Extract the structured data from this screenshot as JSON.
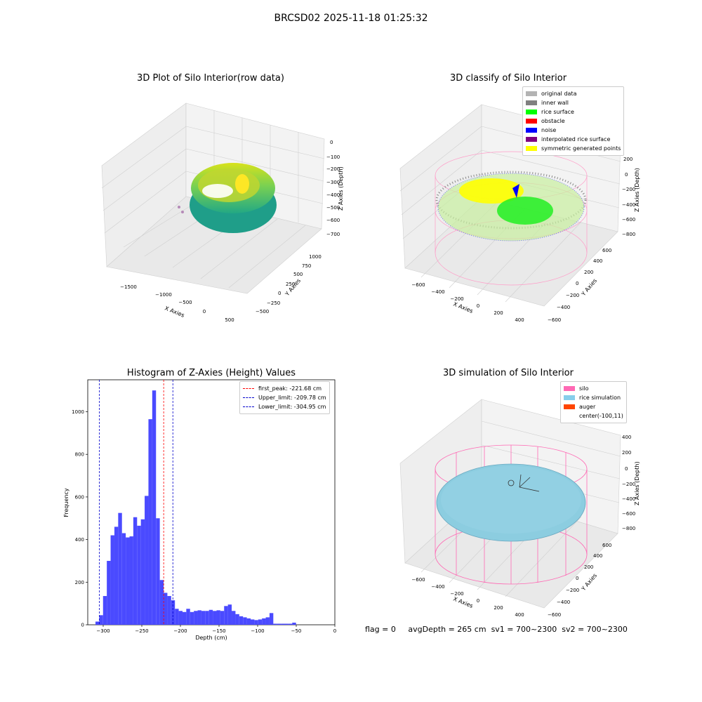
{
  "suptitle": "BRCSD02 2025-11-18 01:25:32",
  "status_line": {
    "flag": "flag = 0",
    "avg_depth": "avgDepth = 265 cm",
    "sv1": "sv1 = 700~2300",
    "sv2": "sv2 = 700~2300"
  },
  "panels": {
    "raw": {
      "title": "3D Plot of Silo Interior(row data)",
      "xlabel": "X Axies",
      "ylabel": "Y Axies",
      "zlabel": "Z Axies (Depth)",
      "x_ticks": [
        "−1500",
        "−1000",
        "−500",
        "0",
        "500"
      ],
      "y_ticks": [
        "−500",
        "−250",
        "0",
        "250",
        "500",
        "750",
        "1000"
      ],
      "z_ticks": [
        "0",
        "−100",
        "−200",
        "−300",
        "−400",
        "−500",
        "−600",
        "−700"
      ]
    },
    "classify": {
      "title": "3D classify of Silo Interior",
      "xlabel": "X Axies",
      "ylabel": "Y Axies",
      "zlabel": "Z Axies (Depth)",
      "x_ticks": [
        "−600",
        "−400",
        "−200",
        "0",
        "200",
        "400"
      ],
      "y_ticks": [
        "−600",
        "−400",
        "−200",
        "0",
        "200",
        "400",
        "600"
      ],
      "z_ticks": [
        "200",
        "0",
        "−200",
        "−400",
        "−600",
        "−800"
      ],
      "legend": [
        {
          "label": "original data",
          "color": "#b3b3b3"
        },
        {
          "label": "inner wall",
          "color": "#808080"
        },
        {
          "label": "rice surface",
          "color": "#00ff00"
        },
        {
          "label": "obstacle",
          "color": "#ff0000"
        },
        {
          "label": "noise",
          "color": "#0000ff"
        },
        {
          "label": "interpolated rice surface",
          "color": "#800080"
        },
        {
          "label": "symmetric generated points",
          "color": "#ffff00"
        }
      ]
    },
    "simulation": {
      "title": "3D simulation of Silo Interior",
      "xlabel": "X Axies",
      "ylabel": "Y Axies",
      "zlabel": "Z Axies (Depth)",
      "x_ticks": [
        "−600",
        "−400",
        "−200",
        "0",
        "200",
        "400"
      ],
      "y_ticks": [
        "−600",
        "−400",
        "−200",
        "0",
        "200",
        "400",
        "600"
      ],
      "z_ticks": [
        "400",
        "200",
        "0",
        "−200",
        "−400",
        "−600",
        "−800"
      ],
      "legend": [
        {
          "label": "silo",
          "color": "#ff69b4"
        },
        {
          "label": "rice simulation",
          "color": "#87ceeb"
        },
        {
          "label": "auger",
          "color": "#ff4500"
        },
        {
          "label": "center(-100,11)",
          "color": ""
        }
      ]
    }
  },
  "chart_data": {
    "type": "bar",
    "title": "Histogram of Z-Axies (Height) Values",
    "xlabel": "Depth (cm)",
    "ylabel": "Frequency",
    "xlim": [
      -320,
      0
    ],
    "ylim": [
      0,
      1150
    ],
    "x_ticks": [
      -300,
      -250,
      -200,
      -150,
      -100,
      -50,
      0
    ],
    "y_ticks": [
      0,
      200,
      400,
      600,
      800,
      1000
    ],
    "bar_color": "#4a4aff",
    "bins": [
      {
        "x0": -310.0,
        "x1": -305.1,
        "count": 15
      },
      {
        "x0": -305.1,
        "x1": -300.2,
        "count": 45
      },
      {
        "x0": -300.2,
        "x1": -295.3,
        "count": 135
      },
      {
        "x0": -295.3,
        "x1": -290.4,
        "count": 300
      },
      {
        "x0": -290.4,
        "x1": -285.5,
        "count": 420
      },
      {
        "x0": -285.5,
        "x1": -280.6,
        "count": 460
      },
      {
        "x0": -280.6,
        "x1": -275.7,
        "count": 525
      },
      {
        "x0": -275.7,
        "x1": -270.8,
        "count": 430
      },
      {
        "x0": -270.8,
        "x1": -265.9,
        "count": 410
      },
      {
        "x0": -265.9,
        "x1": -261.0,
        "count": 415
      },
      {
        "x0": -261.0,
        "x1": -256.1,
        "count": 505
      },
      {
        "x0": -256.1,
        "x1": -251.2,
        "count": 465
      },
      {
        "x0": -251.2,
        "x1": -246.3,
        "count": 495
      },
      {
        "x0": -246.3,
        "x1": -241.4,
        "count": 605
      },
      {
        "x0": -241.4,
        "x1": -236.5,
        "count": 965
      },
      {
        "x0": -236.5,
        "x1": -231.6,
        "count": 1100
      },
      {
        "x0": -231.6,
        "x1": -226.7,
        "count": 500
      },
      {
        "x0": -226.7,
        "x1": -221.8,
        "count": 210
      },
      {
        "x0": -221.8,
        "x1": -216.9,
        "count": 150
      },
      {
        "x0": -216.9,
        "x1": -212.0,
        "count": 135
      },
      {
        "x0": -212.0,
        "x1": -207.1,
        "count": 115
      },
      {
        "x0": -207.1,
        "x1": -202.2,
        "count": 75
      },
      {
        "x0": -202.2,
        "x1": -197.3,
        "count": 65
      },
      {
        "x0": -197.3,
        "x1": -192.4,
        "count": 60
      },
      {
        "x0": -192.4,
        "x1": -187.5,
        "count": 75
      },
      {
        "x0": -187.5,
        "x1": -182.6,
        "count": 60
      },
      {
        "x0": -182.6,
        "x1": -177.7,
        "count": 65
      },
      {
        "x0": -177.7,
        "x1": -172.8,
        "count": 68
      },
      {
        "x0": -172.8,
        "x1": -167.9,
        "count": 65
      },
      {
        "x0": -167.9,
        "x1": -163.0,
        "count": 65
      },
      {
        "x0": -163.0,
        "x1": -158.1,
        "count": 70
      },
      {
        "x0": -158.1,
        "x1": -153.2,
        "count": 65
      },
      {
        "x0": -153.2,
        "x1": -148.3,
        "count": 68
      },
      {
        "x0": -148.3,
        "x1": -143.4,
        "count": 65
      },
      {
        "x0": -143.4,
        "x1": -138.5,
        "count": 88
      },
      {
        "x0": -138.5,
        "x1": -133.6,
        "count": 95
      },
      {
        "x0": -133.6,
        "x1": -128.7,
        "count": 65
      },
      {
        "x0": -128.7,
        "x1": -123.8,
        "count": 50
      },
      {
        "x0": -123.8,
        "x1": -118.9,
        "count": 40
      },
      {
        "x0": -118.9,
        "x1": -114.0,
        "count": 35
      },
      {
        "x0": -114.0,
        "x1": -109.1,
        "count": 30
      },
      {
        "x0": -109.1,
        "x1": -104.2,
        "count": 25
      },
      {
        "x0": -104.2,
        "x1": -99.3,
        "count": 22
      },
      {
        "x0": -99.3,
        "x1": -94.4,
        "count": 25
      },
      {
        "x0": -94.4,
        "x1": -89.5,
        "count": 30
      },
      {
        "x0": -89.5,
        "x1": -84.6,
        "count": 35
      },
      {
        "x0": -84.6,
        "x1": -79.7,
        "count": 55
      },
      {
        "x0": -79.7,
        "x1": -74.8,
        "count": 5
      },
      {
        "x0": -74.8,
        "x1": -69.9,
        "count": 5
      },
      {
        "x0": -69.9,
        "x1": -65.0,
        "count": 5
      },
      {
        "x0": -65.0,
        "x1": -60.1,
        "count": 5
      },
      {
        "x0": -60.1,
        "x1": -55.2,
        "count": 5
      },
      {
        "x0": -55.2,
        "x1": -50.3,
        "count": 10
      }
    ],
    "vlines": [
      {
        "label": "first_peak: -221.68 cm",
        "x": -221.68,
        "color": "#ff0000"
      },
      {
        "label": "Upper_limit: -209.78 cm",
        "x": -209.78,
        "color": "#0000cc"
      },
      {
        "label": "Lower_limit: -304.95 cm",
        "x": -304.95,
        "color": "#0000cc"
      }
    ]
  }
}
